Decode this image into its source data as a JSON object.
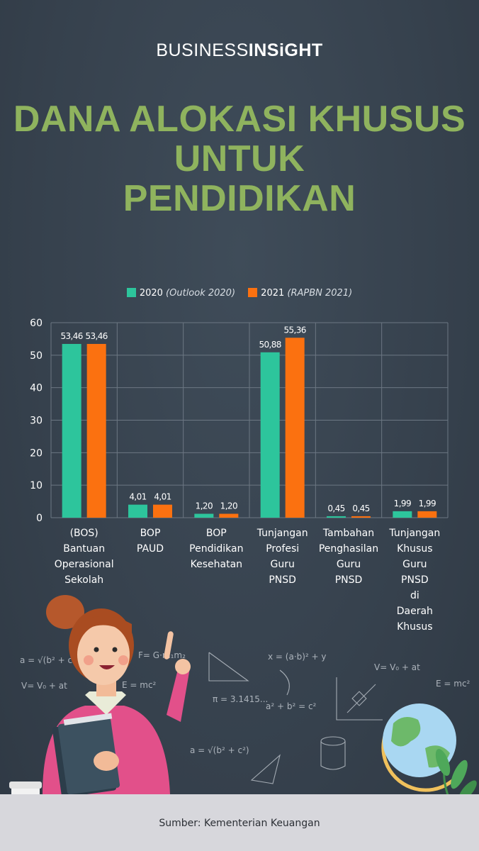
{
  "brand": {
    "part1": "BUSINESS",
    "part2": "INSiGHT"
  },
  "title": {
    "line1": "DANA ALOKASI KHUSUS",
    "line2": "UNTUK",
    "line3": "PENDIDIKAN"
  },
  "legend": [
    {
      "label": "2020",
      "sublabel": "(Outlook 2020)",
      "color": "#2dc59c"
    },
    {
      "label": "2021",
      "sublabel": "(RAPBN 2021)",
      "color": "#fb7110"
    }
  ],
  "chart_data": {
    "type": "bar",
    "categories": [
      [
        "(BOS)",
        "Bantuan",
        "Operasional",
        "Sekolah"
      ],
      [
        "BOP",
        "PAUD"
      ],
      [
        "BOP",
        "Pendidikan",
        "Kesehatan"
      ],
      [
        "Tunjangan",
        "Profesi",
        "Guru",
        "PNSD"
      ],
      [
        "Tambahan",
        "Penghasilan",
        "Guru",
        "PNSD"
      ],
      [
        "Tunjangan",
        "Khusus",
        "Guru",
        "PNSD",
        "di",
        "Daerah",
        "Khusus"
      ]
    ],
    "series": [
      {
        "name": "2020 (Outlook 2020)",
        "values": [
          53.46,
          4.01,
          1.2,
          50.88,
          0.45,
          1.99
        ],
        "labels": [
          "53,46",
          "4,01",
          "1,20",
          "50,88",
          "0,45",
          "1,99"
        ],
        "color": "#2dc59c"
      },
      {
        "name": "2021 (RAPBN 2021)",
        "values": [
          53.46,
          4.01,
          1.2,
          55.36,
          0.45,
          1.99
        ],
        "labels": [
          "53,46",
          "4,01",
          "1,20",
          "55,36",
          "0,45",
          "1,99"
        ],
        "color": "#fb7110"
      }
    ],
    "yticks": [
      "0",
      "10",
      "20",
      "30",
      "40",
      "50",
      "60"
    ],
    "ylim": [
      0,
      60
    ],
    "grid": true
  },
  "source": "Sumber: Kementerian Keuangan",
  "formulas": [
    "a = √(b² + c²)",
    "V= V₀ + at",
    "F= G·m₁m₂",
    "E = mc²",
    "x = (a·b)² + y",
    "V= V₀ + at",
    "E = mc²",
    "π = 3.1415...",
    "a² + b² = c²",
    "a = √(b² + c²)"
  ]
}
